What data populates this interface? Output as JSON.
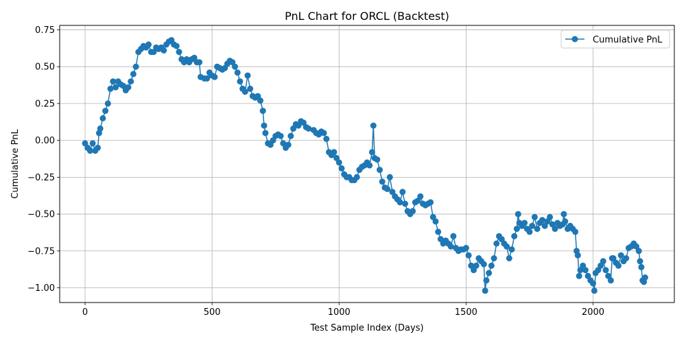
{
  "chart_data": {
    "type": "line",
    "title": "PnL Chart for ORCL (Backtest)",
    "xlabel": "Test Sample Index (Days)",
    "ylabel": "Cumulative PnL",
    "xlim": [
      -100,
      2320
    ],
    "ylim": [
      -1.1,
      0.78
    ],
    "xticks": [
      0,
      500,
      1000,
      1500,
      2000
    ],
    "xtick_labels": [
      "0",
      "500",
      "1000",
      "1500",
      "2000"
    ],
    "yticks": [
      -1.0,
      -0.75,
      -0.5,
      -0.25,
      0.0,
      0.25,
      0.5,
      0.75
    ],
    "ytick_labels": [
      "−1.00",
      "−0.75",
      "−0.50",
      "−0.25",
      "0.00",
      "0.25",
      "0.50",
      "0.75"
    ],
    "grid": true,
    "legend_position": "top-right",
    "series_color": "#1f77b4",
    "marker": "circle",
    "series": [
      {
        "name": "Cumulative PnL",
        "points": [
          [
            0,
            -0.02
          ],
          [
            10,
            -0.05
          ],
          [
            20,
            -0.07
          ],
          [
            30,
            -0.02
          ],
          [
            40,
            -0.07
          ],
          [
            50,
            -0.05
          ],
          [
            55,
            0.05
          ],
          [
            60,
            0.08
          ],
          [
            70,
            0.15
          ],
          [
            80,
            0.2
          ],
          [
            90,
            0.25
          ],
          [
            100,
            0.35
          ],
          [
            110,
            0.4
          ],
          [
            120,
            0.36
          ],
          [
            130,
            0.4
          ],
          [
            140,
            0.38
          ],
          [
            150,
            0.37
          ],
          [
            160,
            0.34
          ],
          [
            170,
            0.36
          ],
          [
            180,
            0.4
          ],
          [
            190,
            0.45
          ],
          [
            200,
            0.5
          ],
          [
            210,
            0.6
          ],
          [
            220,
            0.62
          ],
          [
            230,
            0.64
          ],
          [
            240,
            0.63
          ],
          [
            250,
            0.65
          ],
          [
            260,
            0.6
          ],
          [
            270,
            0.6
          ],
          [
            280,
            0.63
          ],
          [
            290,
            0.62
          ],
          [
            300,
            0.63
          ],
          [
            310,
            0.61
          ],
          [
            320,
            0.65
          ],
          [
            330,
            0.67
          ],
          [
            340,
            0.68
          ],
          [
            350,
            0.65
          ],
          [
            360,
            0.64
          ],
          [
            370,
            0.6
          ],
          [
            380,
            0.55
          ],
          [
            390,
            0.53
          ],
          [
            400,
            0.55
          ],
          [
            410,
            0.53
          ],
          [
            420,
            0.55
          ],
          [
            430,
            0.56
          ],
          [
            440,
            0.53
          ],
          [
            450,
            0.53
          ],
          [
            455,
            0.43
          ],
          [
            470,
            0.42
          ],
          [
            480,
            0.42
          ],
          [
            490,
            0.46
          ],
          [
            500,
            0.44
          ],
          [
            510,
            0.43
          ],
          [
            520,
            0.5
          ],
          [
            530,
            0.49
          ],
          [
            540,
            0.48
          ],
          [
            550,
            0.49
          ],
          [
            560,
            0.52
          ],
          [
            570,
            0.54
          ],
          [
            580,
            0.53
          ],
          [
            590,
            0.5
          ],
          [
            600,
            0.46
          ],
          [
            610,
            0.4
          ],
          [
            620,
            0.35
          ],
          [
            630,
            0.33
          ],
          [
            640,
            0.44
          ],
          [
            650,
            0.35
          ],
          [
            660,
            0.3
          ],
          [
            670,
            0.29
          ],
          [
            680,
            0.3
          ],
          [
            690,
            0.27
          ],
          [
            700,
            0.2
          ],
          [
            705,
            0.1
          ],
          [
            710,
            0.05
          ],
          [
            720,
            -0.02
          ],
          [
            730,
            -0.03
          ],
          [
            740,
            0.0
          ],
          [
            750,
            0.03
          ],
          [
            760,
            0.04
          ],
          [
            770,
            0.03
          ],
          [
            780,
            -0.02
          ],
          [
            790,
            -0.05
          ],
          [
            800,
            -0.03
          ],
          [
            810,
            0.03
          ],
          [
            820,
            0.08
          ],
          [
            830,
            0.11
          ],
          [
            840,
            0.1
          ],
          [
            850,
            0.13
          ],
          [
            860,
            0.12
          ],
          [
            870,
            0.09
          ],
          [
            880,
            0.08
          ],
          [
            900,
            0.07
          ],
          [
            910,
            0.05
          ],
          [
            920,
            0.04
          ],
          [
            930,
            0.06
          ],
          [
            940,
            0.05
          ],
          [
            950,
            0.01
          ],
          [
            960,
            -0.08
          ],
          [
            970,
            -0.1
          ],
          [
            980,
            -0.08
          ],
          [
            990,
            -0.12
          ],
          [
            1000,
            -0.15
          ],
          [
            1010,
            -0.19
          ],
          [
            1020,
            -0.23
          ],
          [
            1030,
            -0.25
          ],
          [
            1040,
            -0.25
          ],
          [
            1050,
            -0.27
          ],
          [
            1060,
            -0.27
          ],
          [
            1070,
            -0.25
          ],
          [
            1080,
            -0.2
          ],
          [
            1090,
            -0.18
          ],
          [
            1100,
            -0.17
          ],
          [
            1110,
            -0.15
          ],
          [
            1120,
            -0.17
          ],
          [
            1130,
            -0.08
          ],
          [
            1135,
            0.1
          ],
          [
            1140,
            -0.12
          ],
          [
            1150,
            -0.13
          ],
          [
            1160,
            -0.2
          ],
          [
            1170,
            -0.28
          ],
          [
            1180,
            -0.32
          ],
          [
            1190,
            -0.33
          ],
          [
            1200,
            -0.25
          ],
          [
            1210,
            -0.35
          ],
          [
            1220,
            -0.38
          ],
          [
            1230,
            -0.4
          ],
          [
            1240,
            -0.42
          ],
          [
            1250,
            -0.35
          ],
          [
            1260,
            -0.43
          ],
          [
            1270,
            -0.48
          ],
          [
            1280,
            -0.5
          ],
          [
            1290,
            -0.48
          ],
          [
            1300,
            -0.42
          ],
          [
            1310,
            -0.41
          ],
          [
            1320,
            -0.38
          ],
          [
            1330,
            -0.43
          ],
          [
            1340,
            -0.44
          ],
          [
            1350,
            -0.43
          ],
          [
            1360,
            -0.42
          ],
          [
            1370,
            -0.52
          ],
          [
            1380,
            -0.55
          ],
          [
            1390,
            -0.62
          ],
          [
            1400,
            -0.67
          ],
          [
            1410,
            -0.7
          ],
          [
            1420,
            -0.68
          ],
          [
            1430,
            -0.7
          ],
          [
            1440,
            -0.72
          ],
          [
            1450,
            -0.65
          ],
          [
            1460,
            -0.73
          ],
          [
            1470,
            -0.75
          ],
          [
            1480,
            -0.74
          ],
          [
            1490,
            -0.74
          ],
          [
            1500,
            -0.73
          ],
          [
            1510,
            -0.78
          ],
          [
            1520,
            -0.85
          ],
          [
            1530,
            -0.88
          ],
          [
            1540,
            -0.85
          ],
          [
            1550,
            -0.8
          ],
          [
            1560,
            -0.82
          ],
          [
            1570,
            -0.84
          ],
          [
            1575,
            -1.02
          ],
          [
            1580,
            -0.95
          ],
          [
            1590,
            -0.9
          ],
          [
            1600,
            -0.85
          ],
          [
            1610,
            -0.8
          ],
          [
            1620,
            -0.7
          ],
          [
            1630,
            -0.65
          ],
          [
            1640,
            -0.67
          ],
          [
            1650,
            -0.7
          ],
          [
            1660,
            -0.72
          ],
          [
            1670,
            -0.8
          ],
          [
            1680,
            -0.74
          ],
          [
            1690,
            -0.65
          ],
          [
            1700,
            -0.6
          ],
          [
            1705,
            -0.5
          ],
          [
            1710,
            -0.56
          ],
          [
            1720,
            -0.58
          ],
          [
            1730,
            -0.56
          ],
          [
            1740,
            -0.6
          ],
          [
            1750,
            -0.62
          ],
          [
            1760,
            -0.58
          ],
          [
            1770,
            -0.52
          ],
          [
            1780,
            -0.6
          ],
          [
            1790,
            -0.56
          ],
          [
            1800,
            -0.54
          ],
          [
            1810,
            -0.58
          ],
          [
            1820,
            -0.55
          ],
          [
            1830,
            -0.52
          ],
          [
            1840,
            -0.57
          ],
          [
            1850,
            -0.6
          ],
          [
            1860,
            -0.56
          ],
          [
            1870,
            -0.58
          ],
          [
            1880,
            -0.57
          ],
          [
            1885,
            -0.5
          ],
          [
            1890,
            -0.55
          ],
          [
            1900,
            -0.6
          ],
          [
            1910,
            -0.58
          ],
          [
            1920,
            -0.6
          ],
          [
            1930,
            -0.62
          ],
          [
            1935,
            -0.75
          ],
          [
            1940,
            -0.78
          ],
          [
            1945,
            -0.92
          ],
          [
            1950,
            -0.88
          ],
          [
            1960,
            -0.85
          ],
          [
            1970,
            -0.88
          ],
          [
            1980,
            -0.92
          ],
          [
            1990,
            -0.95
          ],
          [
            2000,
            -0.97
          ],
          [
            2005,
            -1.02
          ],
          [
            2010,
            -0.9
          ],
          [
            2020,
            -0.88
          ],
          [
            2030,
            -0.85
          ],
          [
            2040,
            -0.82
          ],
          [
            2050,
            -0.88
          ],
          [
            2060,
            -0.92
          ],
          [
            2070,
            -0.95
          ],
          [
            2075,
            -0.8
          ],
          [
            2080,
            -0.8
          ],
          [
            2090,
            -0.83
          ],
          [
            2100,
            -0.85
          ],
          [
            2110,
            -0.78
          ],
          [
            2120,
            -0.82
          ],
          [
            2130,
            -0.8
          ],
          [
            2140,
            -0.73
          ],
          [
            2150,
            -0.72
          ],
          [
            2160,
            -0.7
          ],
          [
            2170,
            -0.72
          ],
          [
            2180,
            -0.75
          ],
          [
            2185,
            -0.82
          ],
          [
            2190,
            -0.86
          ],
          [
            2195,
            -0.95
          ],
          [
            2200,
            -0.96
          ],
          [
            2205,
            -0.93
          ]
        ]
      }
    ]
  }
}
